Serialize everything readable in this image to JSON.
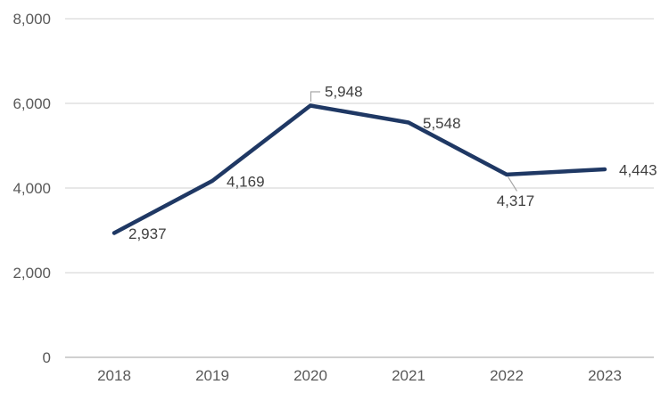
{
  "chart_data": {
    "type": "line",
    "title": "",
    "xlabel": "",
    "ylabel": "",
    "categories": [
      "2018",
      "2019",
      "2020",
      "2021",
      "2022",
      "2023"
    ],
    "values": [
      2937,
      4169,
      5948,
      5548,
      4317,
      4443
    ],
    "data_labels": [
      "2,937",
      "4,169",
      "5,948",
      "5,548",
      "4,317",
      "4,443"
    ],
    "label_placements": [
      "right",
      "right",
      "above-leader",
      "right",
      "below-leader",
      "right"
    ],
    "y_ticks": [
      0,
      2000,
      4000,
      6000,
      8000
    ],
    "y_tick_labels": [
      "0",
      "2,000",
      "4,000",
      "6,000",
      "8,000"
    ],
    "ylim": [
      0,
      8000
    ],
    "grid": true,
    "legend_position": "none",
    "colors": {
      "line": "#1f3864",
      "gridline": "#d9d9d9",
      "axis_line": "#c0c0c0",
      "axis_label": "#595959",
      "data_label": "#404040",
      "leader_line": "#a6a6a6",
      "background": "#ffffff"
    }
  }
}
